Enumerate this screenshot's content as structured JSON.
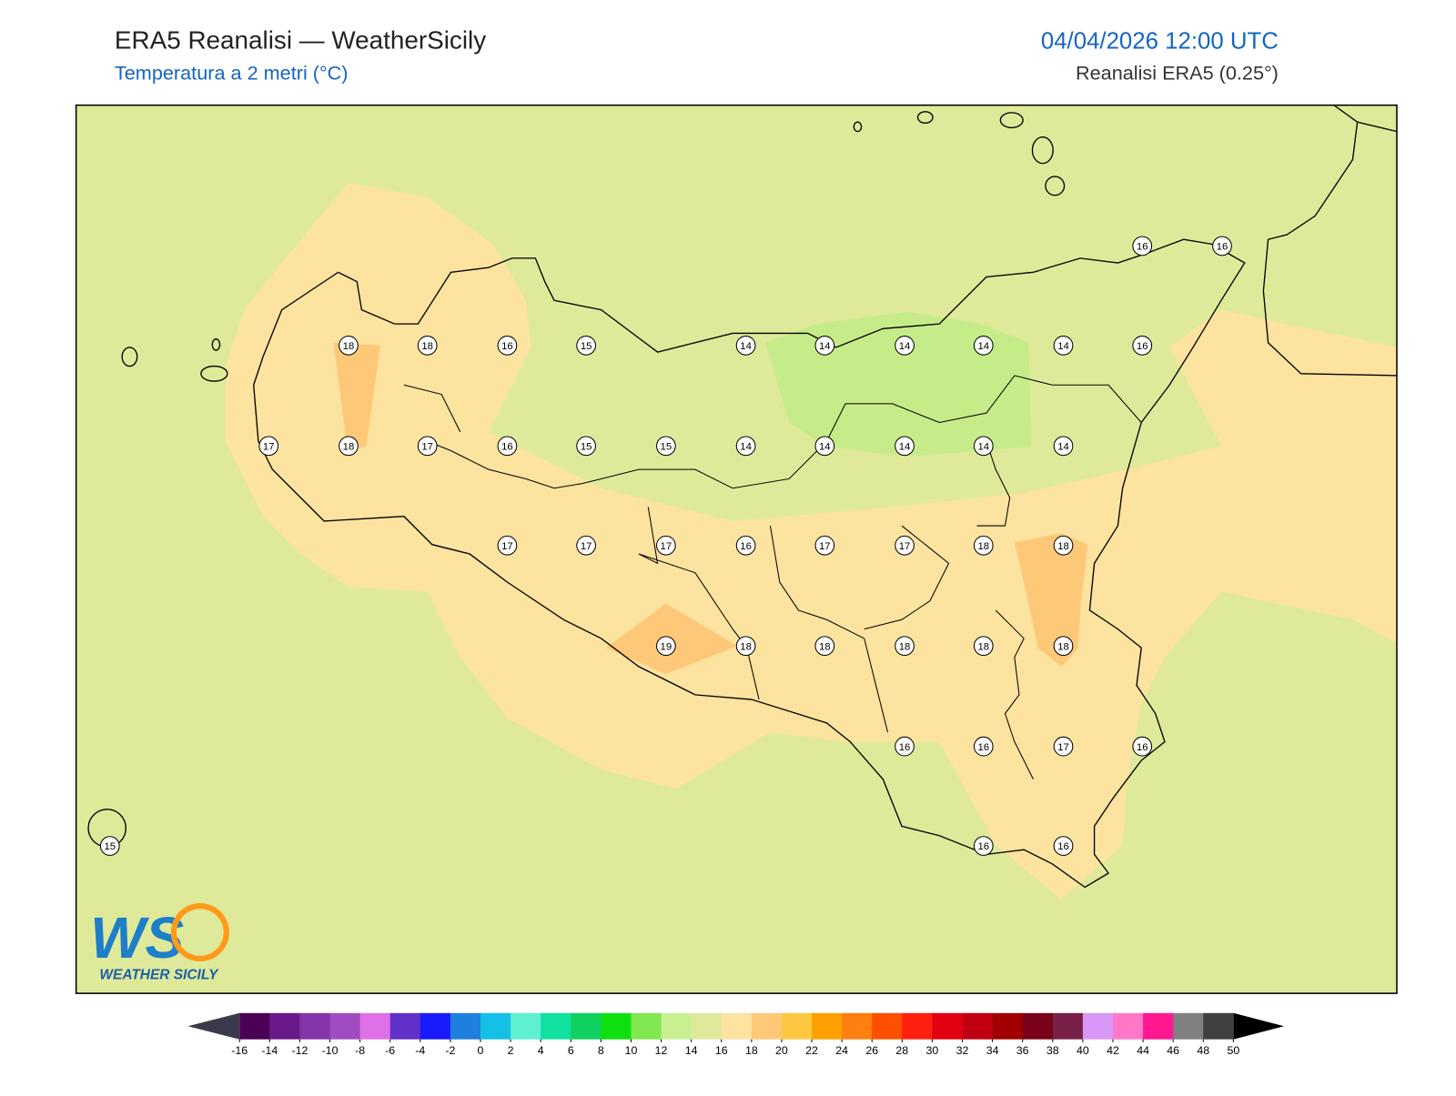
{
  "header": {
    "title": "ERA5 Reanalisi — WeatherSicily",
    "subtitle": "Temperatura a 2 metri (°C)",
    "datetime": "04/04/2026 12:00 UTC",
    "source": "Reanalisi ERA5 (0.25°)"
  },
  "map": {
    "stations": [
      16,
      16,
      18,
      18,
      16,
      15,
      14,
      14,
      14,
      14,
      14,
      16,
      17,
      18,
      17,
      16,
      15,
      15,
      14,
      14,
      14,
      14,
      14,
      17,
      17,
      17,
      16,
      17,
      17,
      18,
      18,
      19,
      18,
      18,
      18,
      18,
      18,
      16,
      16,
      17,
      16,
      15,
      16,
      16
    ],
    "background": "#dfe99a"
  },
  "colorbar": {
    "ticks": [
      -16,
      -14,
      -12,
      -10,
      -8,
      -6,
      -4,
      -2,
      0,
      2,
      4,
      6,
      8,
      10,
      12,
      14,
      16,
      18,
      20,
      22,
      24,
      26,
      28,
      30,
      32,
      34,
      36,
      38,
      40,
      42,
      44,
      46,
      48,
      50
    ],
    "colors": [
      "#4b0055",
      "#6b1a8a",
      "#8236a8",
      "#a04cc0",
      "#e070e8",
      "#6030c8",
      "#1a1aff",
      "#1e7fdc",
      "#14c0e6",
      "#5ef0d0",
      "#10e0a0",
      "#10d060",
      "#10e010",
      "#80e850",
      "#c8f090",
      "#e0e89a",
      "#fde3a0",
      "#fdc878",
      "#ffc840",
      "#ffa000",
      "#ff7f10",
      "#ff5000",
      "#ff2010",
      "#e00010",
      "#c00010",
      "#a00000",
      "#780018",
      "#782048",
      "#d898f8",
      "#ff78c8",
      "#ff1890",
      "#808080",
      "#404040"
    ],
    "under_color": "#3a3a4a",
    "over_color": "#000000"
  },
  "logo": {
    "mark": "WS",
    "text": "WEATHER SICILY"
  }
}
